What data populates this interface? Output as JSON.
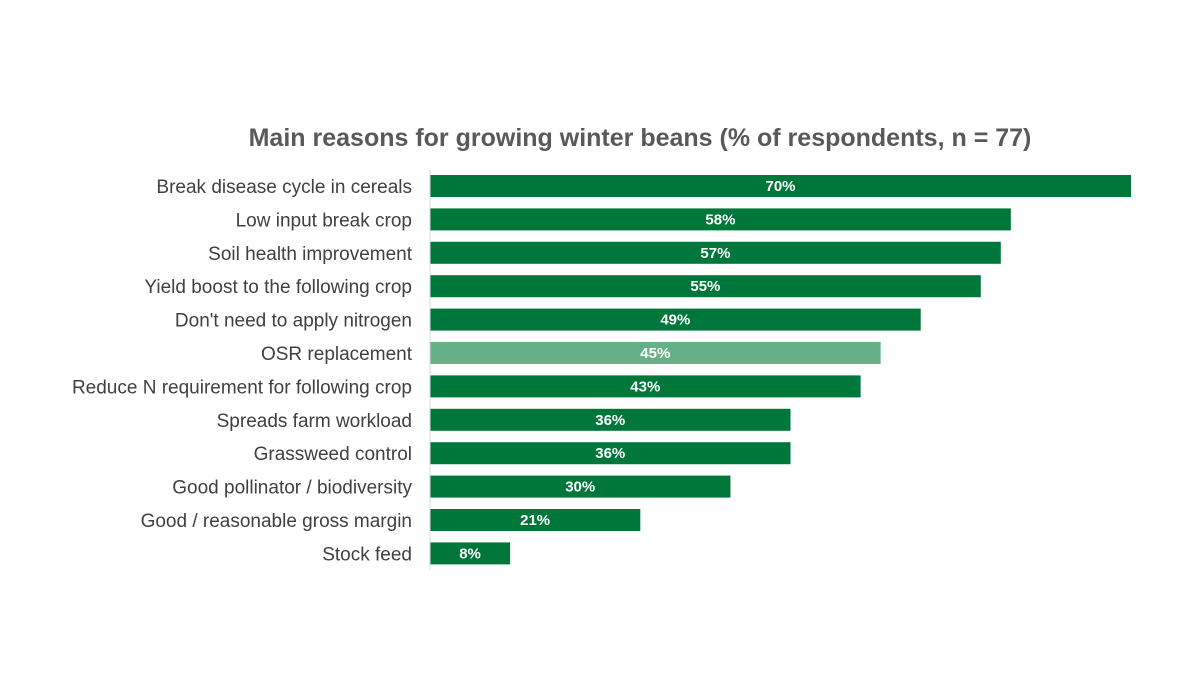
{
  "chart_data": {
    "type": "bar",
    "orientation": "horizontal",
    "title": "Main reasons for growing winter beans (% of respondents, n = 77)",
    "xlabel": "",
    "ylabel": "",
    "xlim": [
      0,
      70
    ],
    "grid": false,
    "legend": "none",
    "categories": [
      "Break disease cycle in cereals",
      "Low input break crop",
      "Soil health improvement",
      "Yield boost to the following crop",
      "Don't need to apply nitrogen",
      "OSR replacement",
      "Reduce N requirement for following crop",
      "Spreads farm workload",
      "Grassweed control",
      "Good pollinator / biodiversity",
      "Good / reasonable gross margin",
      "Stock feed"
    ],
    "values": [
      70,
      58,
      57,
      55,
      49,
      45,
      43,
      36,
      36,
      30,
      21,
      8
    ],
    "data_labels": [
      "70%",
      "58%",
      "57%",
      "55%",
      "49%",
      "45%",
      "43%",
      "36%",
      "36%",
      "30%",
      "21%",
      "8%"
    ],
    "colors": {
      "bar": "#00773a",
      "highlight": "#66b088",
      "axis": "#d9d9d9"
    },
    "highlight_index": 5
  }
}
